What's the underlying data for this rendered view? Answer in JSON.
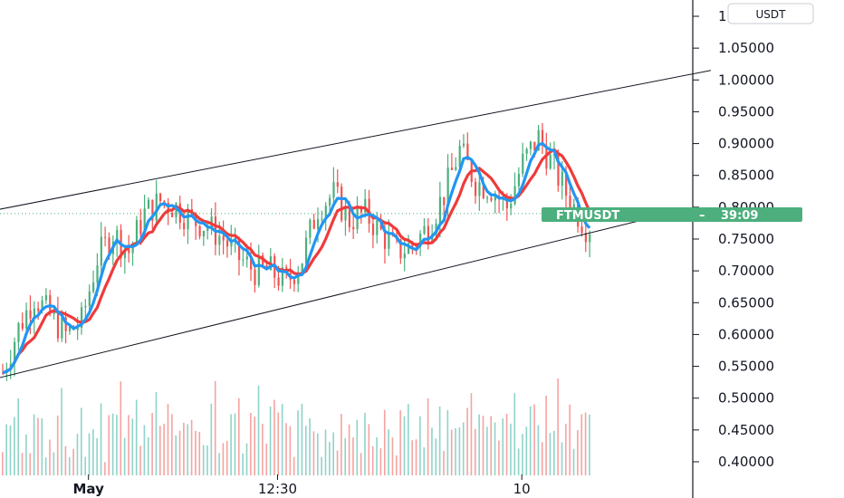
{
  "chart_data": {
    "type": "candlestick",
    "symbol": "FTMUSDT",
    "currency": "USDT",
    "countdown": "39:09",
    "current_price": 0.79,
    "ylim": [
      0.38,
      1.13
    ],
    "y_ticks": [
      "1.10000",
      "1.05000",
      "1.00000",
      "0.95000",
      "0.90000",
      "0.85000",
      "0.80000",
      "0.75000",
      "0.70000",
      "0.65000",
      "0.60000",
      "0.55000",
      "0.50000",
      "0.45000",
      "0.40000"
    ],
    "x_labels": [
      "May",
      "12:30",
      "10"
    ],
    "x_label_positions": [
      22,
      70,
      132
    ],
    "bar_count": 150,
    "price_path": [
      [
        0,
        0.54
      ],
      [
        4,
        0.61
      ],
      [
        8,
        0.66
      ],
      [
        12,
        0.63
      ],
      [
        16,
        0.6
      ],
      [
        20,
        0.62
      ],
      [
        24,
        0.72
      ],
      [
        28,
        0.76
      ],
      [
        32,
        0.73
      ],
      [
        36,
        0.79
      ],
      [
        40,
        0.81
      ],
      [
        44,
        0.8
      ],
      [
        48,
        0.78
      ],
      [
        52,
        0.77
      ],
      [
        56,
        0.75
      ],
      [
        60,
        0.72
      ],
      [
        64,
        0.7
      ],
      [
        68,
        0.7
      ],
      [
        72,
        0.68
      ],
      [
        76,
        0.72
      ],
      [
        80,
        0.8
      ],
      [
        84,
        0.82
      ],
      [
        88,
        0.78
      ],
      [
        92,
        0.79
      ],
      [
        96,
        0.76
      ],
      [
        100,
        0.73
      ],
      [
        104,
        0.74
      ],
      [
        108,
        0.77
      ],
      [
        112,
        0.82
      ],
      [
        116,
        0.89
      ],
      [
        120,
        0.84
      ],
      [
        124,
        0.83
      ],
      [
        128,
        0.8
      ],
      [
        132,
        0.87
      ],
      [
        136,
        0.91
      ],
      [
        140,
        0.86
      ],
      [
        144,
        0.81
      ],
      [
        148,
        0.77
      ],
      [
        150,
        0.77
      ]
    ],
    "channel": {
      "upper": [
        [
          -2,
          0.795
        ],
        [
          180,
          1.015
        ]
      ],
      "lower": [
        [
          -2,
          0.53
        ],
        [
          166,
          0.785
        ]
      ]
    },
    "ma_fast": {
      "color": "#2196f3"
    },
    "ma_slow": {
      "color": "#ef3b3b"
    },
    "colors": {
      "up": "#26a69a",
      "up_candle": "#4caf7d",
      "down": "#ef5350",
      "volume_up": "#8fd3c9",
      "volume_down": "#f5a3a1"
    }
  }
}
